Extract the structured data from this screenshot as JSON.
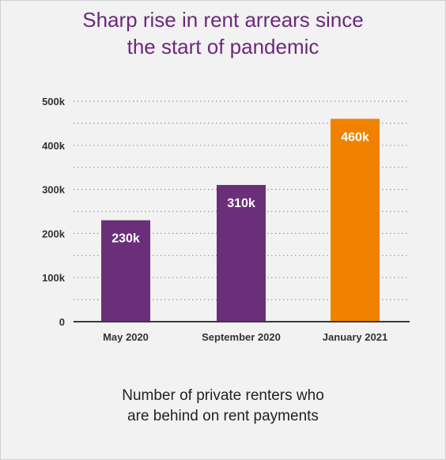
{
  "chart_data": {
    "type": "bar",
    "title_lines": [
      "Sharp rise in rent arrears since",
      "the start of pandemic"
    ],
    "subtitle_lines": [
      "Number of private renters who",
      "are behind on rent payments"
    ],
    "categories": [
      "May 2020",
      "September 2020",
      "January 2021"
    ],
    "values": [
      230000,
      310000,
      460000
    ],
    "value_labels": [
      "230k",
      "310k",
      "460k"
    ],
    "bar_colors": [
      "#6b2f7a",
      "#6b2f7a",
      "#f08200"
    ],
    "ylim": [
      0,
      500000
    ],
    "yticks": [
      0,
      100000,
      200000,
      300000,
      400000,
      500000
    ],
    "ytick_labels": [
      "0",
      "100k",
      "200k",
      "300k",
      "400k",
      "500k"
    ],
    "grid": "dotted",
    "title_color": "#6b2a7a"
  }
}
